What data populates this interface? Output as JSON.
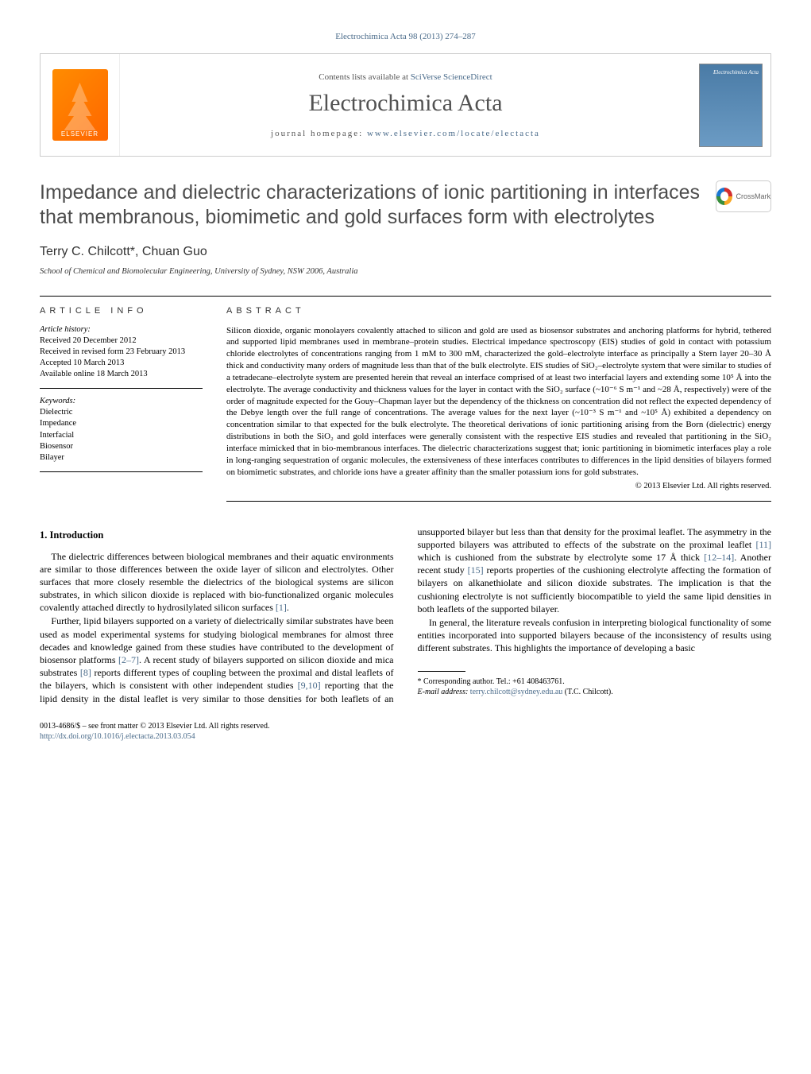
{
  "header_ref": "Electrochimica Acta 98 (2013) 274–287",
  "masthead": {
    "contents_prefix": "Contents lists available at ",
    "contents_link": "SciVerse ScienceDirect",
    "journal": "Electrochimica Acta",
    "homepage_prefix": "journal homepage: ",
    "homepage_url": "www.elsevier.com/locate/electacta",
    "publisher_logo_text": "ELSEVIER",
    "cover_title": "Electrochimica Acta"
  },
  "title": "Impedance and dielectric characterizations of ionic partitioning in interfaces that membranous, biomimetic and gold surfaces form with electrolytes",
  "crossmark_label": "CrossMark",
  "authors": "Terry C. Chilcott*, Chuan Guo",
  "affiliation": "School of Chemical and Biomolecular Engineering, University of Sydney, NSW 2006, Australia",
  "labels": {
    "article_info": "article info",
    "abstract": "abstract",
    "history": "Article history:",
    "keywords": "Keywords:"
  },
  "history": [
    "Received 20 December 2012",
    "Received in revised form 23 February 2013",
    "Accepted 10 March 2013",
    "Available online 18 March 2013"
  ],
  "keywords": [
    "Dielectric",
    "Impedance",
    "Interfacial",
    "Biosensor",
    "Bilayer"
  ],
  "abstract": "Silicon dioxide, organic monolayers covalently attached to silicon and gold are used as biosensor substrates and anchoring platforms for hybrid, tethered and supported lipid membranes used in membrane–protein studies. Electrical impedance spectroscopy (EIS) studies of gold in contact with potassium chloride electrolytes of concentrations ranging from 1 mM to 300 mM, characterized the gold–electrolyte interface as principally a Stern layer 20–30 Å thick and conductivity many orders of magnitude less than that of the bulk electrolyte. EIS studies of SiO₂–electrolyte system that were similar to studies of a tetradecane–electrolyte system are presented herein that reveal an interface comprised of at least two interfacial layers and extending some 10⁵ Å into the electrolyte. The average conductivity and thickness values for the layer in contact with the SiO₂ surface (~10⁻⁶ S m⁻¹ and ~28 Å, respectively) were of the order of magnitude expected for the Gouy–Chapman layer but the dependency of the thickness on concentration did not reflect the expected dependency of the Debye length over the full range of concentrations. The average values for the next layer (~10⁻³ S m⁻¹ and ~10⁵ Å) exhibited a dependency on concentration similar to that expected for the bulk electrolyte. The theoretical derivations of ionic partitioning arising from the Born (dielectric) energy distributions in both the SiO₂ and gold interfaces were generally consistent with the respective EIS studies and revealed that partitioning in the SiO₂ interface mimicked that in bio-membranous interfaces. The dielectric characterizations suggest that; ionic partitioning in biomimetic interfaces play a role in long-ranging sequestration of organic molecules, the extensiveness of these interfaces contributes to differences in the lipid densities of bilayers formed on biomimetic substrates, and chloride ions have a greater affinity than the smaller potassium ions for gold substrates.",
  "copyright": "© 2013 Elsevier Ltd. All rights reserved.",
  "section_heading": "1. Introduction",
  "body": {
    "p1": "The dielectric differences between biological membranes and their aquatic environments are similar to those differences between the oxide layer of silicon and electrolytes. Other surfaces that more closely resemble the dielectrics of the biological systems are silicon substrates, in which silicon dioxide is replaced with bio-functionalized organic molecules covalently attached directly to hydrosilylated silicon surfaces ",
    "p1_ref": "[1]",
    "p1_end": ".",
    "p2": "Further, lipid bilayers supported on a variety of dielectrically similar substrates have been used as model experimental systems for studying biological membranes for almost three decades and knowledge gained from these studies have contributed to the development of biosensor platforms ",
    "p2_ref": "[2–7]",
    "p2_cont": ". A recent study of bilayers supported on silicon dioxide and mica substrates ",
    "p2_ref2": "[8]",
    "p2_cont2": " reports different types of coupling between the proximal and distal leaflets of the bilayers, which is consistent with other independent studies ",
    "p2_ref3": "[9,10]",
    "p2_cont3": " reporting that the lipid density in the distal leaflet is very similar to those densities for both leaflets of an unsupported bilayer but less than that density for the proximal leaflet. The asymmetry in the supported bilayers was attributed to effects of the substrate on the proximal leaflet ",
    "p2_ref4": "[11]",
    "p2_cont4": " which is cushioned from the substrate by electrolyte some 17 Å thick ",
    "p2_ref5": "[12–14]",
    "p2_cont5": ". Another recent study ",
    "p2_ref6": "[15]",
    "p2_cont6": " reports properties of the cushioning electrolyte affecting the formation of bilayers on alkanethiolate and silicon dioxide substrates. The implication is that the cushioning electrolyte is not sufficiently biocompatible to yield the same lipid densities in both leaflets of the supported bilayer.",
    "p3": "In general, the literature reveals confusion in interpreting biological functionality of some entities incorporated into supported bilayers because of the inconsistency of results using different substrates. This highlights the importance of developing a basic"
  },
  "footnote": {
    "corr": "* Corresponding author. Tel.: +61 408463761.",
    "email_label": "E-mail address: ",
    "email": "terry.chilcott@sydney.edu.au",
    "email_suffix": " (T.C. Chilcott)."
  },
  "footer": {
    "line1": "0013-4686/$ – see front matter © 2013 Elsevier Ltd. All rights reserved.",
    "doi_url": "http://dx.doi.org/10.1016/j.electacta.2013.03.054"
  },
  "colors": {
    "link": "#4a6b8a",
    "title_gray": "#4d4d4d",
    "border": "#cccccc",
    "elsevier_orange": "#ff6600"
  }
}
